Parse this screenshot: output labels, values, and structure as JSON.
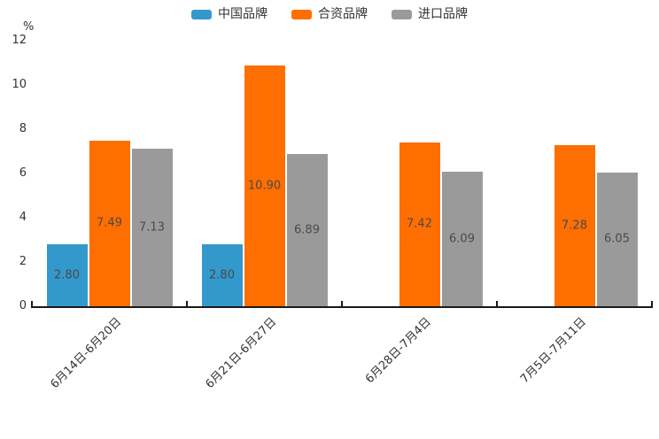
{
  "chart_data": {
    "type": "bar",
    "title": "",
    "ylabel": "%",
    "xlabel": "",
    "categories": [
      "6月14日-6月20日",
      "6月21日-6月27日",
      "6月28日-7月4日",
      "7月5日-7月11日"
    ],
    "series": [
      {
        "name": "中国品牌",
        "color": "#3398CC",
        "values": [
          2.8,
          2.8,
          null,
          null
        ],
        "labels": [
          "2.80",
          "2.80",
          null,
          null
        ]
      },
      {
        "name": "合资品牌",
        "color": "#FF6E00",
        "values": [
          7.49,
          10.9,
          7.42,
          7.28
        ],
        "labels": [
          "7.49",
          "10.90",
          "7.42",
          "7.28"
        ]
      },
      {
        "name": "进口品牌",
        "color": "#9A9A9A",
        "values": [
          7.13,
          6.89,
          6.09,
          6.05
        ],
        "labels": [
          "7.13",
          "6.89",
          "6.09",
          "6.05"
        ]
      }
    ],
    "yticks": [
      0,
      2,
      4,
      6,
      8,
      10,
      12
    ],
    "ylim": [
      0,
      12
    ],
    "legend_position": "top",
    "grid": false,
    "colors": {
      "axis": "#1a1a1a",
      "bar_value_label": "#4a4a4a",
      "tick_label": "#333333"
    }
  }
}
